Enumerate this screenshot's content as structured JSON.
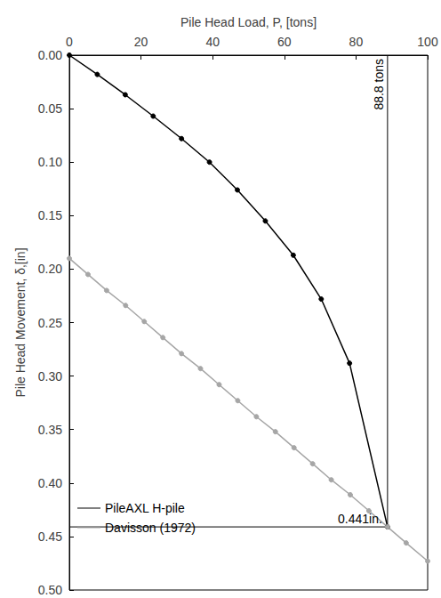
{
  "chart_data": {
    "type": "line",
    "x_label": "Pile Head Load, P, [tons]",
    "y_label": "Pile Head Movement, δ,[in]",
    "xlim": [
      0,
      100
    ],
    "xticks": [
      0,
      20,
      40,
      60,
      80,
      100
    ],
    "ylim": [
      0,
      0.5
    ],
    "yticks": [
      {
        "value": 0,
        "label": "0.00"
      },
      {
        "value": 0.05,
        "label": "0.05"
      },
      {
        "value": 0.1,
        "label": "0.10"
      },
      {
        "value": 0.15,
        "label": "0.15"
      },
      {
        "value": 0.2,
        "label": "0.20"
      },
      {
        "value": 0.25,
        "label": "0.25"
      },
      {
        "value": 0.3,
        "label": "0.30"
      },
      {
        "value": 0.35,
        "label": "0.35"
      },
      {
        "value": 0.4,
        "label": "0.40"
      },
      {
        "value": 0.45,
        "label": "0.45"
      },
      {
        "value": 0.5,
        "label": "0.50"
      }
    ],
    "grid": false,
    "legend": "lower left",
    "series": [
      {
        "name": "PileAXL H-pile",
        "color": "#000000",
        "marker": "circle",
        "line_style": "solid",
        "x": [
          0,
          7.8,
          15.6,
          23.4,
          31.3,
          39.1,
          46.9,
          54.7,
          62.5,
          70.3,
          78.2,
          88.8
        ],
        "values": [
          0,
          0.018,
          0.037,
          0.057,
          0.078,
          0.1,
          0.126,
          0.155,
          0.187,
          0.228,
          0.288,
          0.441
        ]
      },
      {
        "name": "Davisson (1972)",
        "color": "#a6a6a6",
        "marker": "circle",
        "line_style": "solid",
        "x": [
          0,
          5.2,
          10.4,
          15.7,
          20.9,
          26.1,
          31.3,
          36.6,
          41.8,
          47.0,
          52.2,
          57.5,
          62.7,
          67.9,
          73.1,
          78.4,
          83.6,
          88.8,
          94.0,
          100
        ],
        "values": [
          0.19,
          0.205,
          0.22,
          0.234,
          0.249,
          0.264,
          0.279,
          0.293,
          0.308,
          0.323,
          0.338,
          0.352,
          0.367,
          0.382,
          0.397,
          0.411,
          0.426,
          0.441,
          0.456,
          0.473
        ]
      }
    ],
    "annotations": [
      {
        "x": 88.8,
        "y": 0.441,
        "x_text": "88.8 tons",
        "y_text": "0.441in."
      }
    ]
  }
}
